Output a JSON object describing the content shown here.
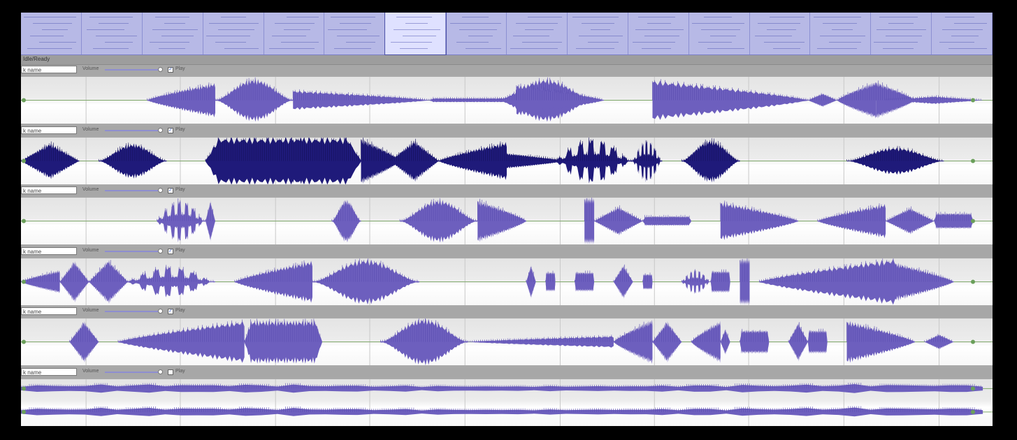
{
  "overview": {
    "status_label": "Idle/Ready",
    "columns": 16,
    "selected_column": 6
  },
  "colors": {
    "waveform": "#6d5fbe",
    "waveform_dark": "#1f1a7a",
    "baseline": "#7fa86a",
    "overview_bg": "#b7b9e6"
  },
  "tracks": [
    {
      "name": "k name",
      "volume_label": "Volume",
      "play_label": "Play",
      "play_checked": true,
      "style": "light",
      "clips": [
        [
          0.13,
          0.2,
          0.45,
          "fadein"
        ],
        [
          0.2,
          0.28,
          0.55,
          "burst"
        ],
        [
          0.28,
          0.42,
          0.25,
          "fadeout"
        ],
        [
          0.42,
          0.51,
          0.05,
          "flat"
        ],
        [
          0.49,
          0.59,
          0.55,
          "burst"
        ],
        [
          0.51,
          0.6,
          0.4,
          "fadeout"
        ],
        [
          0.65,
          0.81,
          0.52,
          "fadeout"
        ],
        [
          0.81,
          0.84,
          0.18,
          "diamond"
        ],
        [
          0.84,
          0.88,
          0.48,
          "fadein"
        ],
        [
          0.88,
          0.92,
          0.48,
          "fadeout"
        ],
        [
          0.89,
          0.99,
          0.1,
          "diamond"
        ]
      ]
    },
    {
      "name": "k name",
      "volume_label": "Volume",
      "play_label": "Play",
      "play_checked": true,
      "style": "dark",
      "clips": [
        [
          0.0,
          0.06,
          0.48,
          "diamond"
        ],
        [
          0.08,
          0.15,
          0.45,
          "burst"
        ],
        [
          0.19,
          0.29,
          0.6,
          "fadein"
        ],
        [
          0.19,
          0.35,
          0.6,
          "block"
        ],
        [
          0.35,
          0.39,
          0.6,
          "fadeout"
        ],
        [
          0.38,
          0.43,
          0.55,
          "diamond"
        ],
        [
          0.43,
          0.5,
          0.5,
          "fadein"
        ],
        [
          0.5,
          0.56,
          0.2,
          "fadeout"
        ],
        [
          0.55,
          0.63,
          0.58,
          "comb"
        ],
        [
          0.63,
          0.66,
          0.55,
          "comb"
        ],
        [
          0.68,
          0.74,
          0.55,
          "burst"
        ],
        [
          0.85,
          0.95,
          0.35,
          "burst"
        ]
      ]
    },
    {
      "name": "k name",
      "volume_label": "Volume",
      "play_label": "Play",
      "play_checked": true,
      "style": "light",
      "clips": [
        [
          0.14,
          0.19,
          0.55,
          "comb"
        ],
        [
          0.19,
          0.2,
          0.55,
          "diamond"
        ],
        [
          0.32,
          0.35,
          0.55,
          "burst"
        ],
        [
          0.39,
          0.47,
          0.55,
          "burst"
        ],
        [
          0.47,
          0.52,
          0.55,
          "fadeout"
        ],
        [
          0.58,
          0.59,
          0.6,
          "bar"
        ],
        [
          0.59,
          0.64,
          0.38,
          "diamond"
        ],
        [
          0.64,
          0.69,
          0.12,
          "flat"
        ],
        [
          0.72,
          0.8,
          0.5,
          "fadeout"
        ],
        [
          0.82,
          0.89,
          0.45,
          "fadein"
        ],
        [
          0.89,
          0.94,
          0.35,
          "diamond"
        ],
        [
          0.94,
          0.98,
          0.2,
          "flat"
        ]
      ]
    },
    {
      "name": "k name",
      "volume_label": "Volume",
      "play_label": "Play",
      "play_checked": true,
      "style": "light",
      "clips": [
        [
          0.0,
          0.04,
          0.3,
          "fadein"
        ],
        [
          0.04,
          0.07,
          0.55,
          "diamond"
        ],
        [
          0.07,
          0.11,
          0.58,
          "diamond"
        ],
        [
          0.11,
          0.2,
          0.4,
          "comb"
        ],
        [
          0.22,
          0.3,
          0.55,
          "fadein"
        ],
        [
          0.3,
          0.41,
          0.58,
          "burst"
        ],
        [
          0.52,
          0.53,
          0.45,
          "diamond"
        ],
        [
          0.54,
          0.55,
          0.25,
          "flat"
        ],
        [
          0.57,
          0.59,
          0.25,
          "flat"
        ],
        [
          0.61,
          0.63,
          0.45,
          "diamond"
        ],
        [
          0.64,
          0.65,
          0.2,
          "flat"
        ],
        [
          0.68,
          0.71,
          0.32,
          "comb"
        ],
        [
          0.71,
          0.73,
          0.28,
          "flat"
        ],
        [
          0.74,
          0.75,
          0.6,
          "bar"
        ],
        [
          0.76,
          0.9,
          0.6,
          "fadein"
        ],
        [
          0.9,
          0.96,
          0.5,
          "fadeout"
        ]
      ]
    },
    {
      "name": "k name",
      "volume_label": "Volume",
      "play_label": "Play",
      "play_checked": true,
      "style": "light",
      "clips": [
        [
          0.05,
          0.08,
          0.55,
          "diamond"
        ],
        [
          0.1,
          0.23,
          0.55,
          "fadein"
        ],
        [
          0.23,
          0.31,
          0.55,
          "block"
        ],
        [
          0.37,
          0.46,
          0.6,
          "burst"
        ],
        [
          0.46,
          0.61,
          0.15,
          "fadein"
        ],
        [
          0.61,
          0.65,
          0.58,
          "fadein"
        ],
        [
          0.65,
          0.68,
          0.55,
          "diamond"
        ],
        [
          0.69,
          0.72,
          0.55,
          "fadein"
        ],
        [
          0.72,
          0.73,
          0.35,
          "diamond"
        ],
        [
          0.74,
          0.77,
          0.3,
          "flat"
        ],
        [
          0.79,
          0.81,
          0.52,
          "diamond"
        ],
        [
          0.81,
          0.83,
          0.3,
          "flat"
        ],
        [
          0.85,
          0.92,
          0.55,
          "fadeout"
        ],
        [
          0.93,
          0.96,
          0.2,
          "diamond"
        ]
      ]
    },
    {
      "name": "k name",
      "volume_label": "Volume",
      "play_label": "Play",
      "play_checked": false,
      "style": "stereo",
      "clips": [
        [
          0.0,
          0.99,
          0.09,
          "ripple"
        ]
      ]
    }
  ]
}
